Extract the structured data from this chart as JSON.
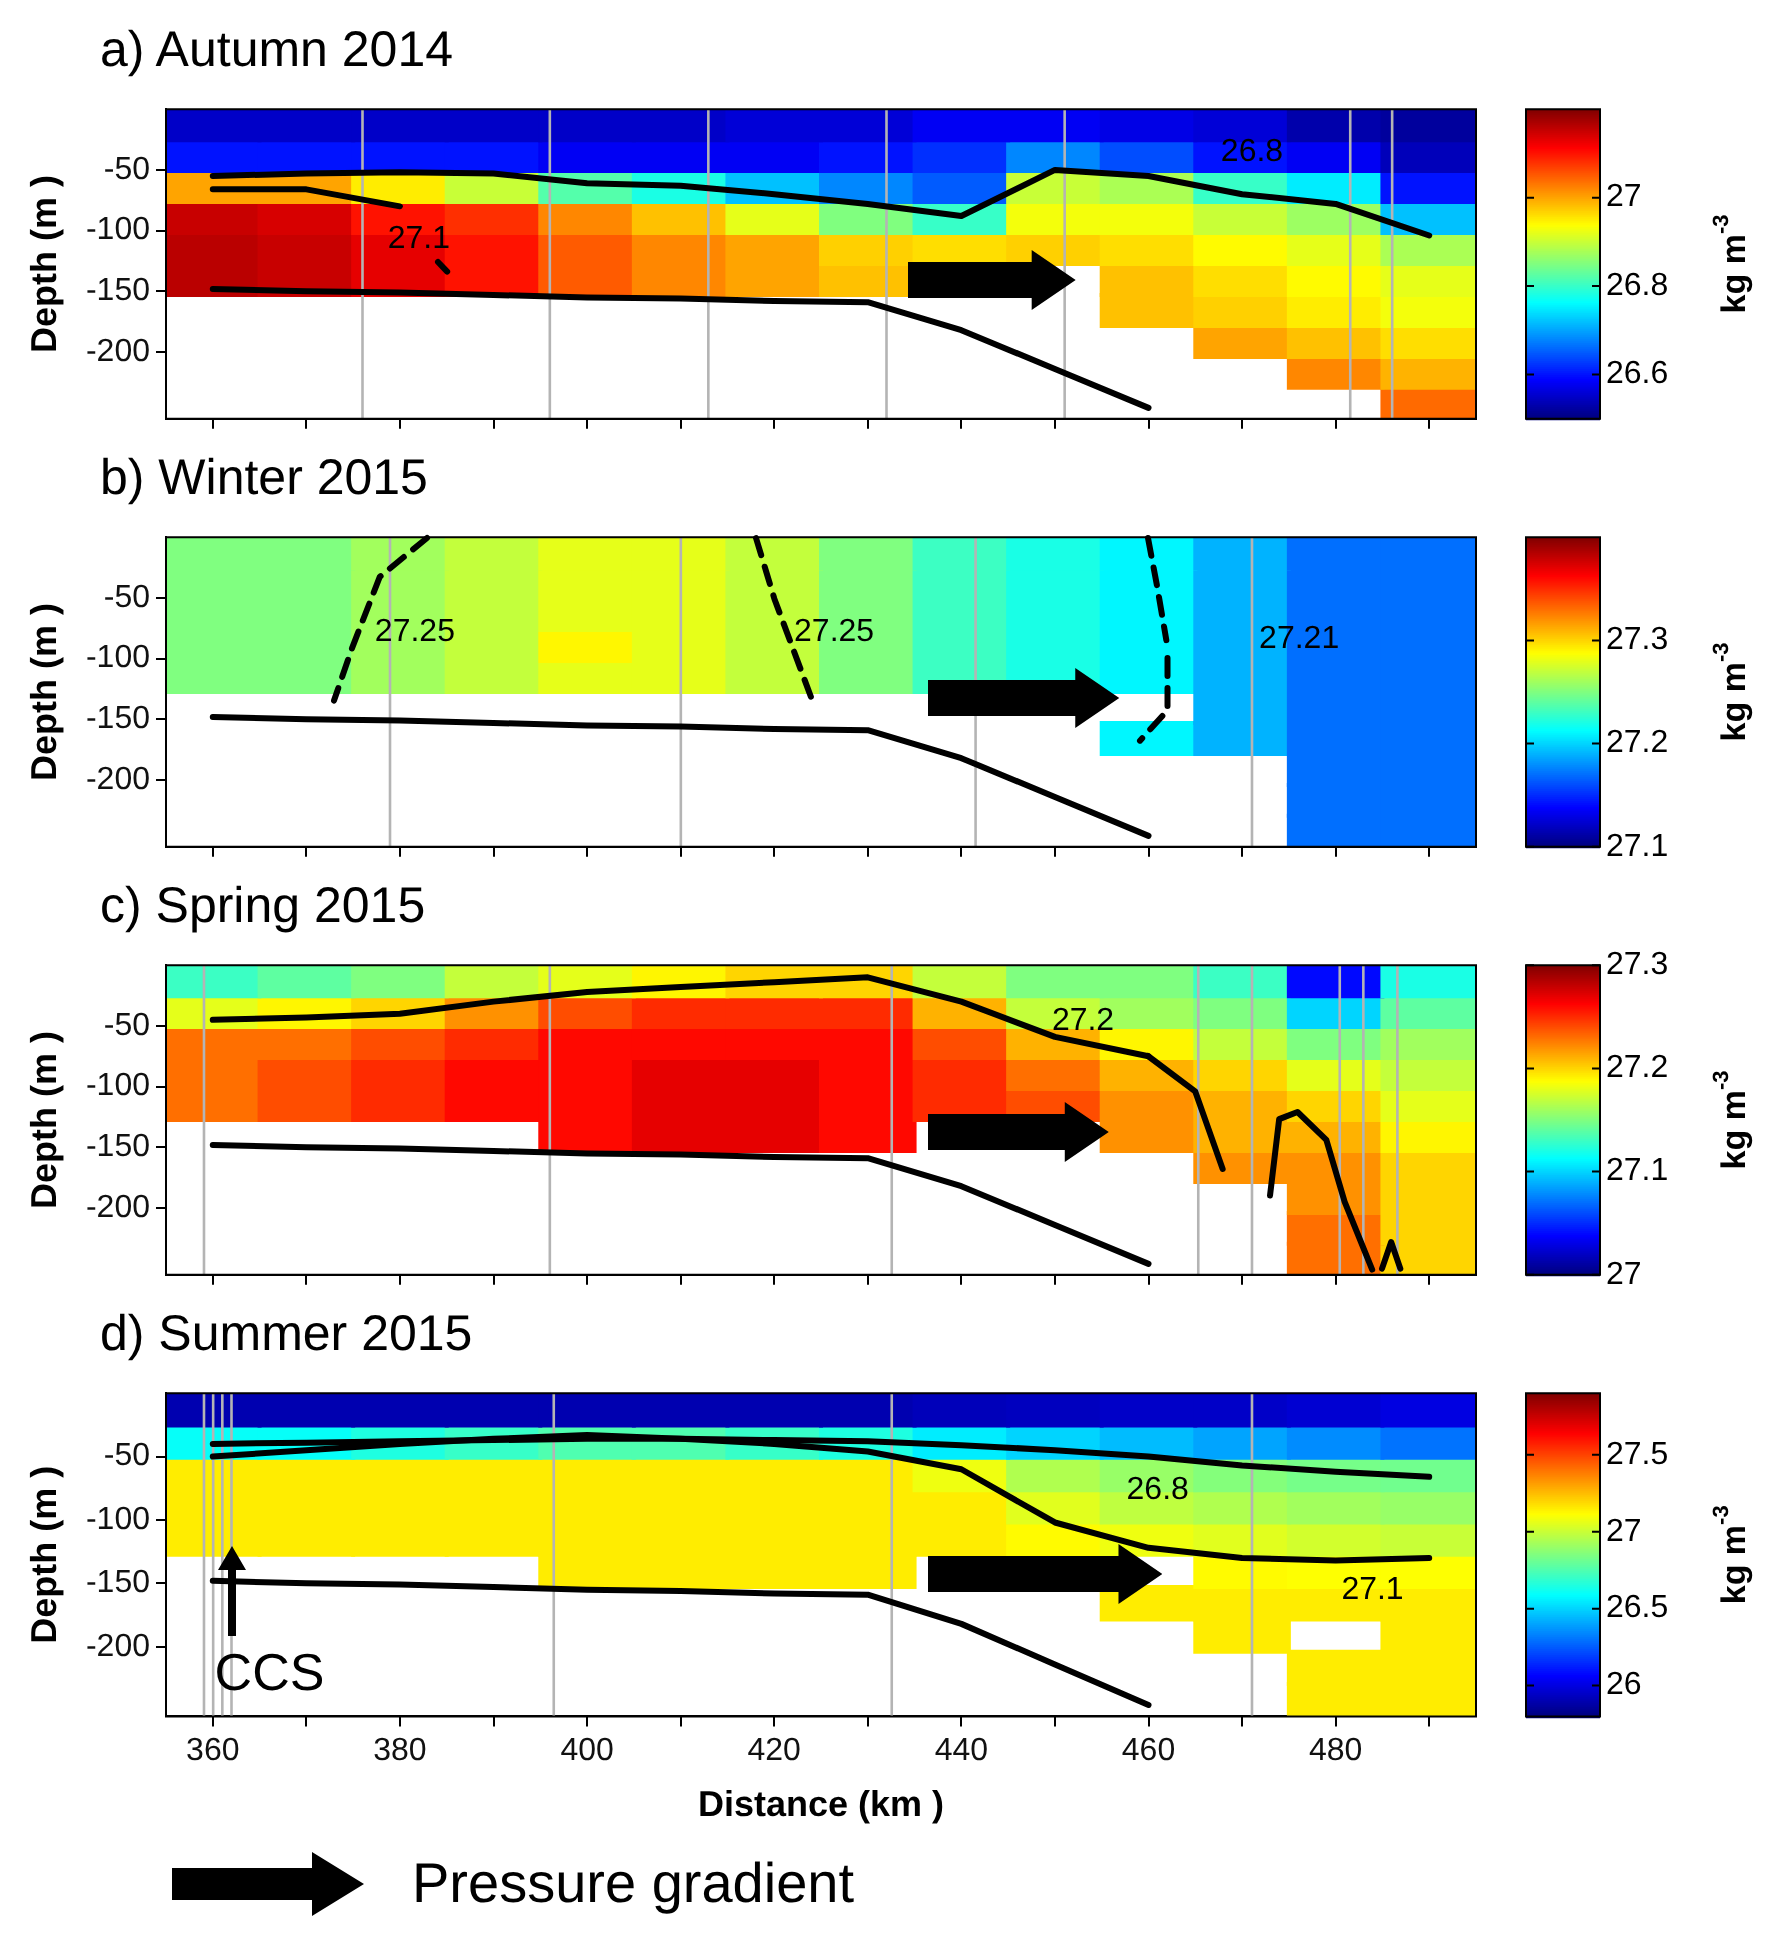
{
  "chart_data": [
    {
      "type": "heatmap",
      "title": "a) Autumn 2014",
      "ylabel": "Depth (m )",
      "clabel": "kg m$^{-3}$",
      "clim": [
        26.5,
        27.2
      ],
      "cticks": [
        26.6,
        26.8,
        27
      ],
      "ylim": [
        -255,
        0
      ],
      "yticks": [
        -50,
        -100,
        -150,
        -200
      ],
      "tick_labels": "y",
      "marker": "none",
      "categories": [
        "360",
        null,
        "380",
        null,
        "400",
        null,
        "420",
        null,
        "440",
        null,
        "460",
        null,
        "480",
        null
      ],
      "cells": [
        [
          26.55,
          26.55,
          26.55,
          26.55,
          26.55,
          26.55,
          26.56,
          26.56,
          26.58,
          26.58,
          26.57,
          26.56,
          26.53,
          26.52
        ],
        [
          26.6,
          26.6,
          26.6,
          26.6,
          26.58,
          26.58,
          26.58,
          26.6,
          26.62,
          26.68,
          26.64,
          26.6,
          26.58,
          26.54
        ],
        [
          27.0,
          27.0,
          26.95,
          26.9,
          26.82,
          26.78,
          26.72,
          26.68,
          26.65,
          26.9,
          26.88,
          26.8,
          26.75,
          26.6
        ],
        [
          27.15,
          27.14,
          27.1,
          27.08,
          27.02,
          26.98,
          26.92,
          26.85,
          26.8,
          26.93,
          26.93,
          26.9,
          26.87,
          26.72
        ],
        [
          27.16,
          27.15,
          27.13,
          27.1,
          27.05,
          27.02,
          27.0,
          26.97,
          26.96,
          26.97,
          26.96,
          26.94,
          26.92,
          26.88
        ],
        [
          27.16,
          27.15,
          27.13,
          27.1,
          27.05,
          27.02,
          27.0,
          26.98,
          null,
          null,
          26.98,
          26.96,
          26.94,
          26.92
        ],
        [
          null,
          null,
          null,
          null,
          null,
          null,
          null,
          null,
          null,
          null,
          26.98,
          26.97,
          26.95,
          26.93
        ],
        [
          null,
          null,
          null,
          null,
          null,
          null,
          null,
          null,
          null,
          null,
          null,
          27.0,
          26.98,
          26.96
        ],
        [
          null,
          null,
          null,
          null,
          null,
          null,
          null,
          null,
          null,
          null,
          null,
          null,
          27.02,
          26.99
        ],
        [
          null,
          null,
          null,
          null,
          null,
          null,
          null,
          null,
          null,
          null,
          null,
          null,
          null,
          27.04
        ]
      ],
      "series": [
        {
          "type": "line",
          "color": "#000000",
          "values": [
            -148,
            -150,
            -151,
            -153,
            -155,
            -156,
            -158,
            -159,
            -182,
            -214,
            -246,
            null,
            null,
            null
          ]
        },
        {
          "type": "line",
          "color": "#000000",
          "values": [
            -55,
            -53,
            -52,
            -53,
            -61,
            -63,
            -70,
            -78,
            -88,
            -50,
            -55,
            -70,
            -78,
            -104
          ]
        },
        {
          "type": "line",
          "color": "#000000",
          "values": [
            -66,
            -66,
            -80,
            null,
            null,
            null,
            null,
            null,
            null,
            null,
            null,
            null,
            null,
            null
          ]
        }
      ],
      "annotations": [
        "27.1",
        "26.8"
      ]
    },
    {
      "type": "heatmap",
      "title": "b) Winter 2015",
      "ylabel": "Depth (m )",
      "clabel": "kg m$^{-3}$",
      "clim": [
        27.1,
        27.4
      ],
      "cticks": [
        27.1,
        27.2,
        27.3
      ],
      "ylim": [
        -255,
        0
      ],
      "yticks": [
        -50,
        -100,
        -150,
        -200
      ],
      "tick_labels": "y",
      "marker": "none",
      "categories": [
        "360",
        null,
        "380",
        null,
        "400",
        null,
        "420",
        null,
        "440",
        null,
        "460",
        null,
        "480",
        null
      ],
      "cells": [
        [
          27.25,
          27.25,
          27.26,
          27.27,
          27.28,
          27.28,
          27.27,
          27.25,
          27.23,
          27.22,
          27.21,
          27.19,
          27.17,
          27.17
        ],
        [
          27.25,
          27.25,
          27.26,
          27.27,
          27.28,
          27.28,
          27.27,
          27.25,
          27.23,
          27.22,
          27.21,
          27.19,
          27.17,
          27.17
        ],
        [
          27.25,
          27.25,
          27.26,
          27.27,
          27.28,
          27.28,
          27.27,
          27.25,
          27.23,
          27.22,
          27.21,
          27.19,
          27.17,
          27.17
        ],
        [
          27.25,
          27.25,
          27.26,
          27.27,
          27.29,
          27.28,
          27.27,
          27.25,
          27.23,
          27.22,
          27.21,
          27.19,
          27.17,
          27.17
        ],
        [
          27.25,
          27.25,
          27.26,
          27.27,
          27.28,
          27.28,
          27.27,
          27.25,
          27.23,
          27.22,
          27.21,
          27.19,
          27.17,
          27.17
        ],
        [
          null,
          null,
          null,
          null,
          null,
          null,
          null,
          null,
          null,
          null,
          null,
          27.19,
          27.17,
          27.17
        ],
        [
          null,
          null,
          null,
          null,
          null,
          null,
          null,
          null,
          null,
          null,
          27.21,
          27.19,
          27.17,
          27.17
        ],
        [
          null,
          null,
          null,
          null,
          null,
          null,
          null,
          null,
          null,
          null,
          null,
          null,
          27.17,
          27.17
        ],
        [
          null,
          null,
          null,
          null,
          null,
          null,
          null,
          null,
          null,
          null,
          null,
          null,
          27.17,
          27.17
        ],
        [
          null,
          null,
          null,
          null,
          null,
          null,
          null,
          null,
          null,
          null,
          null,
          null,
          27.17,
          27.17
        ]
      ],
      "series": [
        {
          "type": "line",
          "color": "#000000",
          "values": [
            -148,
            -150,
            -151,
            -153,
            -155,
            -156,
            -158,
            -159,
            -182,
            -214,
            -246,
            null,
            null,
            null
          ]
        }
      ],
      "annotations": [
        "27.25",
        "27.25",
        "27.21"
      ]
    },
    {
      "type": "heatmap",
      "title": "c) Spring 2015",
      "ylabel": "Depth (m )",
      "clabel": "kg m$^{-3}$",
      "clim": [
        27,
        27.3
      ],
      "cticks": [
        27,
        27.1,
        27.2,
        27.3
      ],
      "ylim": [
        -255,
        0
      ],
      "yticks": [
        -50,
        -100,
        -150,
        -200
      ],
      "tick_labels": "y",
      "marker": "none",
      "categories": [
        "360",
        null,
        "380",
        null,
        "400",
        null,
        "420",
        null,
        "440",
        null,
        "460",
        null,
        "480",
        null
      ],
      "cells": [
        [
          27.13,
          27.14,
          27.15,
          27.17,
          27.18,
          27.19,
          27.2,
          27.2,
          27.17,
          27.15,
          27.15,
          27.13,
          27.04,
          27.12
        ],
        [
          27.18,
          27.19,
          27.2,
          27.22,
          27.24,
          27.25,
          27.25,
          27.25,
          27.21,
          27.17,
          27.16,
          27.15,
          27.1,
          27.14
        ],
        [
          27.23,
          27.23,
          27.24,
          27.25,
          27.26,
          27.26,
          27.26,
          27.26,
          27.24,
          27.21,
          27.19,
          27.17,
          27.15,
          27.16
        ],
        [
          27.23,
          27.24,
          27.25,
          27.26,
          27.26,
          27.27,
          27.27,
          27.26,
          27.25,
          27.23,
          27.21,
          27.2,
          27.18,
          27.17
        ],
        [
          27.23,
          27.24,
          27.25,
          27.26,
          27.26,
          27.27,
          27.27,
          27.26,
          27.25,
          27.24,
          27.22,
          27.21,
          27.2,
          27.18
        ],
        [
          null,
          null,
          null,
          null,
          27.26,
          27.27,
          27.27,
          27.26,
          null,
          null,
          27.22,
          27.21,
          27.21,
          27.19
        ],
        [
          null,
          null,
          null,
          null,
          null,
          null,
          null,
          null,
          null,
          null,
          null,
          27.22,
          27.22,
          27.2
        ],
        [
          null,
          null,
          null,
          null,
          null,
          null,
          null,
          null,
          null,
          null,
          null,
          null,
          27.22,
          27.2
        ],
        [
          null,
          null,
          null,
          null,
          null,
          null,
          null,
          null,
          null,
          null,
          null,
          null,
          27.23,
          27.2
        ],
        [
          null,
          null,
          null,
          null,
          null,
          null,
          null,
          null,
          null,
          null,
          null,
          null,
          27.23,
          27.2
        ]
      ],
      "series": [
        {
          "type": "line",
          "color": "#000000",
          "values": [
            -148,
            -150,
            -151,
            -153,
            -155,
            -156,
            -158,
            -159,
            -182,
            -214,
            -246,
            null,
            null,
            null
          ]
        },
        {
          "type": "line",
          "color": "#000000",
          "values": [
            -45,
            -43,
            -40,
            -30,
            -22,
            -18,
            -14,
            -10,
            -30,
            -59,
            -75,
            null,
            null,
            null
          ]
        }
      ],
      "annotations": [
        "27.2"
      ]
    },
    {
      "type": "heatmap",
      "title": "d) Summer 2015",
      "xlabel": "Distance (km )",
      "ylabel": "Depth (m )",
      "clabel": "kg m$^{-3}$",
      "clim": [
        25.8,
        27.9
      ],
      "cticks": [
        26,
        26.5,
        27,
        27.5
      ],
      "ylim": [
        -255,
        0
      ],
      "yticks": [
        -50,
        -100,
        -150,
        -200
      ],
      "marker": "none",
      "categories": [
        "360",
        null,
        "380",
        null,
        "400",
        null,
        "420",
        null,
        "440",
        null,
        "460",
        null,
        "480",
        null
      ],
      "cells": [
        [
          25.9,
          25.9,
          25.9,
          25.9,
          25.9,
          25.9,
          25.9,
          25.9,
          25.92,
          25.93,
          25.95,
          25.95,
          25.97,
          26.0
        ],
        [
          26.6,
          26.6,
          26.65,
          26.7,
          26.75,
          26.75,
          26.7,
          26.65,
          26.55,
          26.5,
          26.45,
          26.4,
          26.35,
          26.3
        ],
        [
          27.15,
          27.15,
          27.15,
          27.15,
          27.15,
          27.15,
          27.15,
          27.15,
          27.08,
          26.95,
          26.9,
          26.86,
          26.83,
          26.82
        ],
        [
          27.15,
          27.15,
          27.15,
          27.15,
          27.15,
          27.15,
          27.15,
          27.15,
          27.15,
          27.05,
          26.98,
          26.95,
          26.92,
          26.9
        ],
        [
          27.15,
          27.15,
          27.15,
          27.15,
          27.15,
          27.15,
          27.15,
          27.15,
          27.15,
          27.12,
          27.08,
          27.05,
          27.02,
          27.0
        ],
        [
          null,
          null,
          null,
          null,
          27.15,
          27.15,
          27.15,
          27.15,
          null,
          null,
          null,
          27.12,
          27.11,
          27.11
        ],
        [
          null,
          null,
          null,
          null,
          null,
          null,
          null,
          null,
          null,
          null,
          27.15,
          27.15,
          27.15,
          27.15
        ],
        [
          null,
          null,
          null,
          null,
          null,
          null,
          null,
          null,
          null,
          null,
          null,
          27.15,
          null,
          27.15
        ],
        [
          null,
          null,
          null,
          null,
          null,
          null,
          null,
          null,
          null,
          null,
          null,
          null,
          27.15,
          27.15
        ],
        [
          null,
          null,
          null,
          null,
          null,
          null,
          null,
          null,
          null,
          null,
          null,
          null,
          27.15,
          27.15
        ]
      ],
      "series": [
        {
          "type": "line",
          "color": "#000000",
          "values": [
            -148,
            -150,
            -151,
            -153,
            -155,
            -156,
            -158,
            -159,
            -182,
            -214,
            -246,
            null,
            null,
            null
          ]
        },
        {
          "type": "line",
          "color": "#000000",
          "values": [
            -40,
            -39,
            -38,
            -37,
            -36,
            -36,
            -37,
            -38,
            -41,
            -45,
            -50,
            -57,
            -62,
            -66
          ]
        },
        {
          "type": "line",
          "color": "#000000",
          "values": [
            -50,
            -45,
            -40,
            -36,
            -33,
            -36,
            -40,
            -46,
            -60,
            -102,
            -122,
            -130,
            -132,
            -130
          ]
        }
      ],
      "annotations": [
        "26.8",
        "27.1",
        "CCS",
        "Pressure gradient"
      ]
    }
  ]
}
